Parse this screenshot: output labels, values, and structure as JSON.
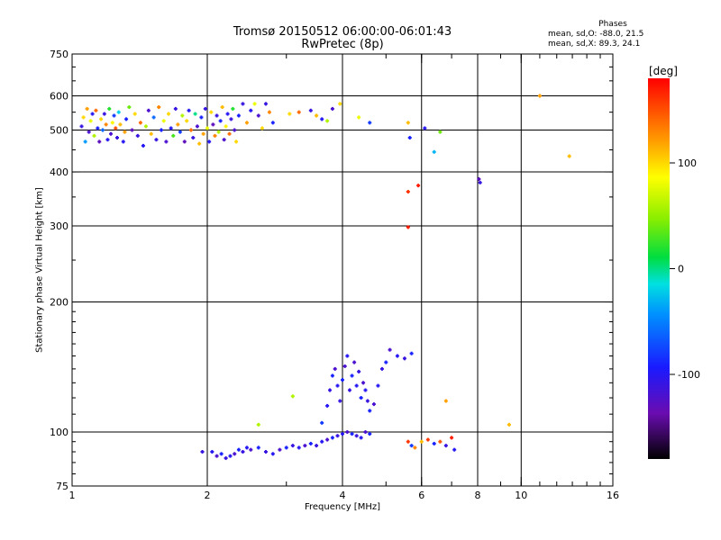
{
  "header": {
    "title_line1": "Tromsø 20150512 06:00:00-06:01:43",
    "title_line2": "RwPretec (8p)"
  },
  "stats": {
    "heading": "Phases",
    "o_line": "mean, sd,O: -88.0, 21.5",
    "x_line": "mean, sd,X:  89.3, 24.1"
  },
  "colorbar": {
    "unit_label": "[deg]",
    "range": [
      -180,
      180
    ],
    "ticks": [
      {
        "value": 100,
        "label": "100"
      },
      {
        "value": 0,
        "label": "0"
      },
      {
        "value": -100,
        "label": "-100"
      }
    ]
  },
  "chart_data": {
    "type": "scatter",
    "title": "Tromsø 20150512 06:00:00-06:01:43",
    "subtitle": "RwPretec (8p)",
    "xlabel": "Frequency [MHz]",
    "ylabel": "Stationary phase Virtual Height [km]",
    "xscale": "log",
    "yscale": "log",
    "xlim": [
      1,
      16
    ],
    "ylim": [
      75,
      750
    ],
    "grid": true,
    "xticks": [
      {
        "value": 1,
        "label": "1"
      },
      {
        "value": 2,
        "label": "2"
      },
      {
        "value": 4,
        "label": "4"
      },
      {
        "value": 6,
        "label": "6"
      },
      {
        "value": 8,
        "label": "8"
      },
      {
        "value": 10,
        "label": "10"
      },
      {
        "value": 16,
        "label": "16"
      }
    ],
    "x_gridlines": [
      2,
      4,
      6,
      8,
      10
    ],
    "yticks": [
      {
        "value": 75,
        "label": "75"
      },
      {
        "value": 100,
        "label": "100"
      },
      {
        "value": 200,
        "label": "200"
      },
      {
        "value": 300,
        "label": "300"
      },
      {
        "value": 400,
        "label": "400"
      },
      {
        "value": 500,
        "label": "500"
      },
      {
        "value": 600,
        "label": "600"
      },
      {
        "value": 750,
        "label": "750"
      }
    ],
    "y_gridlines": [
      100,
      200,
      300,
      400,
      500,
      600
    ],
    "color_scale": "phase [deg], -180 to 180",
    "points": [
      [
        1.05,
        510,
        -110
      ],
      [
        1.06,
        535,
        100
      ],
      [
        1.07,
        470,
        -40
      ],
      [
        1.08,
        560,
        120
      ],
      [
        1.09,
        495,
        -120
      ],
      [
        1.1,
        525,
        80
      ],
      [
        1.11,
        545,
        -100
      ],
      [
        1.12,
        485,
        60
      ],
      [
        1.13,
        555,
        140
      ],
      [
        1.14,
        505,
        -90
      ],
      [
        1.15,
        470,
        -130
      ],
      [
        1.16,
        530,
        100
      ],
      [
        1.17,
        500,
        -60
      ],
      [
        1.18,
        545,
        -110
      ],
      [
        1.19,
        515,
        130
      ],
      [
        1.2,
        475,
        -100
      ],
      [
        1.21,
        560,
        20
      ],
      [
        1.22,
        490,
        -120
      ],
      [
        1.23,
        520,
        90
      ],
      [
        1.24,
        540,
        -80
      ],
      [
        1.25,
        505,
        150
      ],
      [
        1.26,
        480,
        -110
      ],
      [
        1.27,
        550,
        -20
      ],
      [
        1.28,
        515,
        110
      ],
      [
        1.3,
        470,
        -100
      ],
      [
        1.31,
        495,
        120
      ],
      [
        1.32,
        530,
        -90
      ],
      [
        1.34,
        565,
        40
      ],
      [
        1.36,
        500,
        -130
      ],
      [
        1.38,
        545,
        100
      ],
      [
        1.4,
        485,
        -110
      ],
      [
        1.42,
        520,
        140
      ],
      [
        1.44,
        460,
        -100
      ],
      [
        1.46,
        510,
        60
      ],
      [
        1.48,
        555,
        -120
      ],
      [
        1.5,
        490,
        110
      ],
      [
        1.52,
        535,
        -60
      ],
      [
        1.54,
        475,
        -110
      ],
      [
        1.56,
        565,
        130
      ],
      [
        1.58,
        500,
        -90
      ],
      [
        1.6,
        525,
        80
      ],
      [
        1.62,
        470,
        -120
      ],
      [
        1.64,
        545,
        100
      ],
      [
        1.66,
        505,
        -100
      ],
      [
        1.68,
        485,
        30
      ],
      [
        1.7,
        560,
        -110
      ],
      [
        1.72,
        515,
        120
      ],
      [
        1.74,
        495,
        -80
      ],
      [
        1.76,
        540,
        60
      ],
      [
        1.78,
        470,
        -130
      ],
      [
        1.8,
        525,
        100
      ],
      [
        1.82,
        555,
        -100
      ],
      [
        1.84,
        500,
        140
      ],
      [
        1.86,
        480,
        -110
      ],
      [
        1.88,
        545,
        0
      ],
      [
        1.9,
        510,
        -120
      ],
      [
        1.92,
        465,
        110
      ],
      [
        1.94,
        535,
        -90
      ],
      [
        1.96,
        490,
        120
      ],
      [
        1.98,
        560,
        -110
      ],
      [
        2.0,
        505,
        80
      ],
      [
        2.02,
        470,
        -100
      ],
      [
        2.04,
        550,
        100
      ],
      [
        2.06,
        515,
        -130
      ],
      [
        2.08,
        485,
        130
      ],
      [
        2.1,
        540,
        -110
      ],
      [
        2.12,
        495,
        60
      ],
      [
        2.14,
        525,
        -90
      ],
      [
        2.16,
        565,
        110
      ],
      [
        2.18,
        475,
        -120
      ],
      [
        2.2,
        510,
        90
      ],
      [
        2.22,
        545,
        -100
      ],
      [
        2.24,
        490,
        140
      ],
      [
        2.26,
        530,
        -110
      ],
      [
        2.28,
        560,
        20
      ],
      [
        2.3,
        500,
        -120
      ],
      [
        2.32,
        470,
        100
      ],
      [
        2.35,
        540,
        -90
      ],
      [
        2.4,
        575,
        -110
      ],
      [
        2.45,
        520,
        120
      ],
      [
        2.5,
        555,
        -100
      ],
      [
        2.55,
        575,
        80
      ],
      [
        2.6,
        540,
        -120
      ],
      [
        2.65,
        505,
        100
      ],
      [
        2.7,
        575,
        -110
      ],
      [
        2.75,
        550,
        130
      ],
      [
        2.8,
        520,
        -90
      ],
      [
        3.05,
        545,
        100
      ],
      [
        3.2,
        550,
        140
      ],
      [
        3.4,
        555,
        -110
      ],
      [
        3.5,
        540,
        110
      ],
      [
        3.6,
        530,
        -100
      ],
      [
        3.7,
        525,
        60
      ],
      [
        3.8,
        560,
        -120
      ],
      [
        3.95,
        575,
        100
      ],
      [
        4.35,
        535,
        80
      ],
      [
        4.6,
        520,
        -80
      ],
      [
        5.6,
        520,
        110
      ],
      [
        5.65,
        480,
        -90
      ],
      [
        6.1,
        505,
        -100
      ],
      [
        6.4,
        445,
        -30
      ],
      [
        6.6,
        495,
        40
      ],
      [
        5.6,
        360,
        160
      ],
      [
        5.9,
        372,
        170
      ],
      [
        8.05,
        385,
        -130
      ],
      [
        8.1,
        378,
        -110
      ],
      [
        11.0,
        600,
        120
      ],
      [
        12.8,
        435,
        110
      ],
      [
        5.6,
        298,
        170
      ],
      [
        1.95,
        90,
        -110
      ],
      [
        2.05,
        90,
        -100
      ],
      [
        2.1,
        88,
        -120
      ],
      [
        2.15,
        89,
        -90
      ],
      [
        2.2,
        87,
        -110
      ],
      [
        2.25,
        88,
        -100
      ],
      [
        2.3,
        89,
        -120
      ],
      [
        2.35,
        91,
        -90
      ],
      [
        2.4,
        90,
        -110
      ],
      [
        2.45,
        92,
        -100
      ],
      [
        2.5,
        91,
        -120
      ],
      [
        2.6,
        92,
        -90
      ],
      [
        2.7,
        90,
        -110
      ],
      [
        2.8,
        89,
        -100
      ],
      [
        2.9,
        91,
        -120
      ],
      [
        3.0,
        92,
        -90
      ],
      [
        3.1,
        93,
        -110
      ],
      [
        3.2,
        92,
        -100
      ],
      [
        3.3,
        93,
        -120
      ],
      [
        3.4,
        94,
        -90
      ],
      [
        3.5,
        93,
        -110
      ],
      [
        3.6,
        95,
        -100
      ],
      [
        3.7,
        96,
        -120
      ],
      [
        3.8,
        97,
        -90
      ],
      [
        3.9,
        98,
        -110
      ],
      [
        4.0,
        99,
        -100
      ],
      [
        4.1,
        100,
        -120
      ],
      [
        4.2,
        99,
        -90
      ],
      [
        4.3,
        98,
        -110
      ],
      [
        4.4,
        97,
        -100
      ],
      [
        4.5,
        100,
        -120
      ],
      [
        4.6,
        99,
        -90
      ],
      [
        2.6,
        104,
        60
      ],
      [
        3.1,
        121,
        60
      ],
      [
        3.6,
        105,
        -80
      ],
      [
        3.7,
        115,
        -100
      ],
      [
        3.75,
        125,
        -110
      ],
      [
        3.8,
        135,
        -90
      ],
      [
        3.85,
        140,
        -120
      ],
      [
        3.9,
        128,
        -100
      ],
      [
        3.95,
        118,
        -110
      ],
      [
        4.0,
        132,
        -90
      ],
      [
        4.05,
        142,
        -120
      ],
      [
        4.1,
        150,
        -100
      ],
      [
        4.15,
        125,
        -110
      ],
      [
        4.2,
        135,
        -90
      ],
      [
        4.25,
        145,
        -120
      ],
      [
        4.3,
        128,
        -100
      ],
      [
        4.35,
        138,
        -110
      ],
      [
        4.4,
        120,
        -90
      ],
      [
        4.45,
        130,
        -120
      ],
      [
        4.5,
        125,
        -100
      ],
      [
        4.55,
        118,
        -110
      ],
      [
        4.6,
        112,
        -90
      ],
      [
        4.7,
        116,
        -120
      ],
      [
        4.8,
        128,
        -100
      ],
      [
        4.9,
        140,
        -110
      ],
      [
        5.0,
        145,
        -90
      ],
      [
        5.1,
        155,
        -120
      ],
      [
        5.3,
        150,
        -100
      ],
      [
        5.5,
        148,
        -110
      ],
      [
        5.7,
        152,
        -90
      ],
      [
        5.6,
        95,
        160
      ],
      [
        5.7,
        93,
        -80
      ],
      [
        5.8,
        92,
        130
      ],
      [
        6.0,
        95,
        110
      ],
      [
        6.2,
        96,
        160
      ],
      [
        6.4,
        94,
        -90
      ],
      [
        6.6,
        95,
        150
      ],
      [
        6.8,
        93,
        -110
      ],
      [
        7.0,
        97,
        170
      ],
      [
        7.1,
        91,
        -100
      ],
      [
        9.4,
        104,
        110
      ],
      [
        6.8,
        118,
        120
      ]
    ]
  }
}
